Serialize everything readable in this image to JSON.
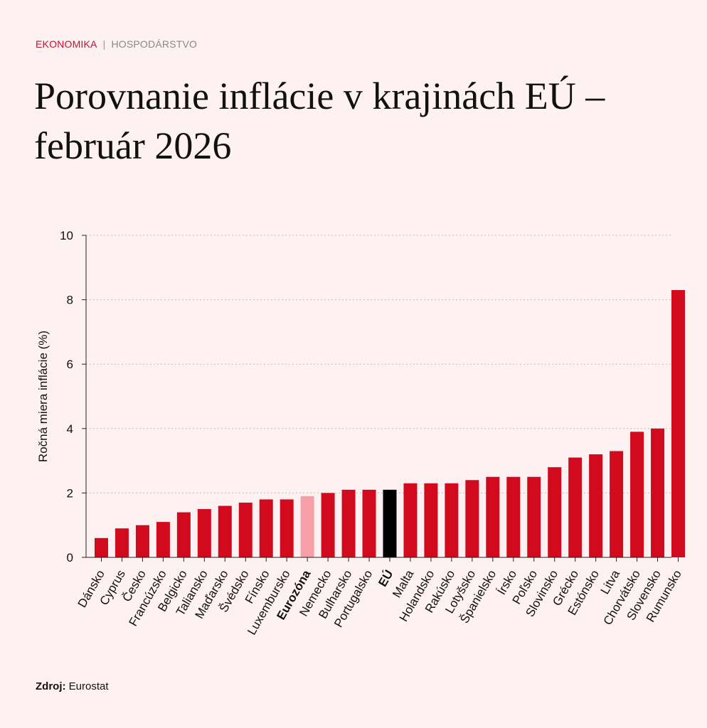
{
  "header": {
    "category": "EKONOMIKA",
    "separator": "|",
    "subcategory": "HOSPODÁRSTVO",
    "title": "Porovnanie inflácie v krajinách EÚ – február 2026"
  },
  "colors": {
    "bar": "#d10a1e",
    "eurozone": "#f4a0a6",
    "eu": "#000000",
    "grid": "#bdbdbd",
    "axis": "#222222",
    "background": "#fdf1f1"
  },
  "chart_data": {
    "type": "bar",
    "title": "Porovnanie inflácie v krajinách EÚ – február 2026",
    "xlabel": "",
    "ylabel": "Ročná miera inflácie (%)",
    "ylim": [
      0,
      10
    ],
    "yticks": [
      0,
      2,
      4,
      6,
      8,
      10
    ],
    "grid": true,
    "categories": [
      "Dánsko",
      "Cyprus",
      "Česko",
      "Francúzsko",
      "Belgicko",
      "Taliansko",
      "Maďarsko",
      "Švédsko",
      "Fínsko",
      "Luxembursko",
      "Eurozóna",
      "Nemecko",
      "Bulharsko",
      "Portugalsko",
      "EÚ",
      "Malta",
      "Holandsko",
      "Rakúsko",
      "Lotyšsko",
      "Španielsko",
      "Írsko",
      "Poľsko",
      "Slovinsko",
      "Grécko",
      "Estónsko",
      "Litva",
      "Chorvátsko",
      "Slovensko",
      "Rumunsko"
    ],
    "values": [
      0.6,
      0.9,
      1.0,
      1.1,
      1.4,
      1.5,
      1.6,
      1.7,
      1.8,
      1.8,
      1.9,
      2.0,
      2.1,
      2.1,
      2.1,
      2.3,
      2.3,
      2.3,
      2.4,
      2.5,
      2.5,
      2.5,
      2.8,
      3.1,
      3.2,
      3.3,
      3.9,
      4.0,
      8.3
    ],
    "highlight": {
      "Eurozóna": "eurozone",
      "EÚ": "eu"
    },
    "bold_labels": [
      "Eurozóna",
      "EÚ"
    ]
  },
  "footer": {
    "source_label": "Zdroj:",
    "source_value": "Eurostat"
  }
}
